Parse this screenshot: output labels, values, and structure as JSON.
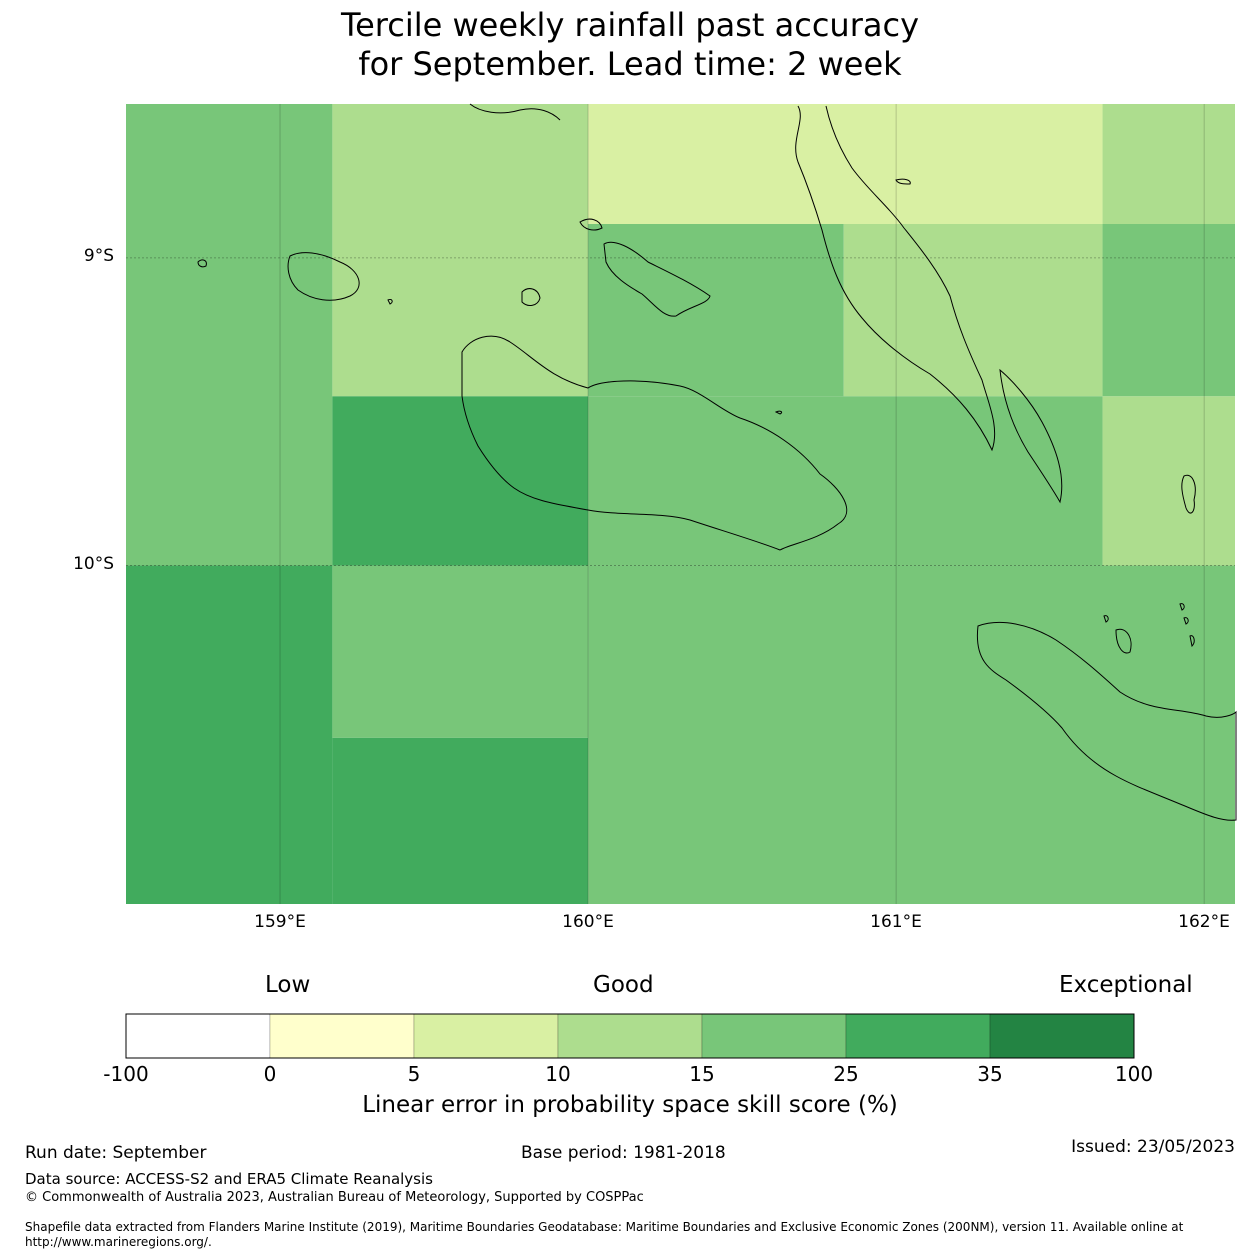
{
  "title": {
    "line1": "Tercile weekly rainfall past accuracy",
    "line2": "for September. Lead time: 2 week"
  },
  "map": {
    "lat_labels": [
      "9°S",
      "10°S"
    ],
    "lon_labels": [
      "159°E",
      "160°E",
      "161°E",
      "162°E"
    ],
    "extent": {
      "lon_min": 158.5,
      "lon_max": 162.1,
      "lat_min": -11.1,
      "lat_max": -8.5
    },
    "grid_lons": [
      159,
      160,
      161,
      162
    ],
    "grid_lats": [
      -9,
      -10
    ],
    "cells": [
      {
        "lon0": 158.5,
        "lon1": 159.17,
        "lat0": -10.0,
        "lat1": -8.5,
        "category": "15-25"
      },
      {
        "lon0": 159.17,
        "lon1": 160.0,
        "lat0": -9.45,
        "lat1": -8.5,
        "category": "10-15"
      },
      {
        "lon0": 160.0,
        "lon1": 161.67,
        "lat0": -8.89,
        "lat1": -8.5,
        "category": "5-10"
      },
      {
        "lon0": 160.0,
        "lon1": 160.83,
        "lat0": -9.45,
        "lat1": -8.89,
        "category": "15-25"
      },
      {
        "lon0": 160.83,
        "lon1": 161.67,
        "lat0": -9.45,
        "lat1": -8.89,
        "category": "10-15"
      },
      {
        "lon0": 161.67,
        "lon1": 162.1,
        "lat0": -8.89,
        "lat1": -8.5,
        "category": "10-15"
      },
      {
        "lon0": 161.67,
        "lon1": 162.1,
        "lat0": -9.45,
        "lat1": -8.89,
        "category": "15-25"
      },
      {
        "lon0": 159.17,
        "lon1": 160.0,
        "lat0": -10.0,
        "lat1": -9.45,
        "category": "25-35"
      },
      {
        "lon0": 160.0,
        "lon1": 161.67,
        "lat0": -10.0,
        "lat1": -9.45,
        "category": "15-25"
      },
      {
        "lon0": 161.67,
        "lon1": 162.1,
        "lat0": -10.0,
        "lat1": -9.45,
        "category": "10-15"
      },
      {
        "lon0": 158.5,
        "lon1": 159.17,
        "lat0": -11.1,
        "lat1": -10.0,
        "category": "25-35"
      },
      {
        "lon0": 159.17,
        "lon1": 160.0,
        "lat0": -10.56,
        "lat1": -10.0,
        "category": "15-25"
      },
      {
        "lon0": 159.17,
        "lon1": 160.0,
        "lat0": -11.1,
        "lat1": -10.56,
        "category": "25-35"
      },
      {
        "lon0": 160.0,
        "lon1": 162.1,
        "lat0": -11.1,
        "lat1": -10.0,
        "category": "15-25"
      }
    ]
  },
  "legend": {
    "words": [
      "Low",
      "Good",
      "Exceptional"
    ],
    "ticks": [
      "-100",
      "0",
      "5",
      "10",
      "15",
      "25",
      "35",
      "100"
    ],
    "bins": [
      {
        "range": "-100-0",
        "color": "#ffffff"
      },
      {
        "range": "0-5",
        "color": "#ffffcc"
      },
      {
        "range": "5-10",
        "color": "#d9f0a3"
      },
      {
        "range": "10-15",
        "color": "#addd8e"
      },
      {
        "range": "15-25",
        "color": "#78c679"
      },
      {
        "range": "25-35",
        "color": "#41ab5d"
      },
      {
        "range": "35-100",
        "color": "#238443"
      }
    ],
    "label": "Linear error in probability space skill score (%)"
  },
  "footer": {
    "run_date": "Run date: September",
    "base_period": "Base period: 1981-2018",
    "issued": "Issued: 23/05/2023",
    "data_source": "Data source: ACCESS-S2 and ERA5 Climate Reanalysis",
    "copyright": "© Commonwealth of Australia 2023, Australian Bureau of Meteorology, Supported by COSPPac",
    "shapefile": "Shapefile data extracted from Flanders Marine Institute (2019), Maritime Boundaries Geodatabase: Maritime Boundaries and Exclusive Economic Zones (200NM), version 11. Available online at http://www.marineregions.org/."
  }
}
